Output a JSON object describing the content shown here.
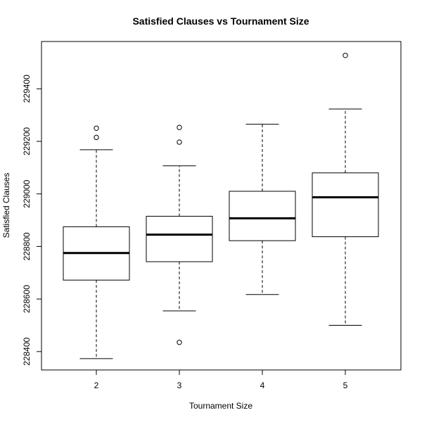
{
  "chart_data": {
    "type": "boxplot",
    "title": "Satisfied Clauses vs Tournament Size",
    "xlabel": "Tournament Size",
    "ylabel": "Satisfied Clauses",
    "categories": [
      "2",
      "3",
      "4",
      "5"
    ],
    "yticks": [
      228400,
      228600,
      228800,
      229000,
      229200,
      229400
    ],
    "ylim": [
      228330,
      229580
    ],
    "boxes": [
      {
        "category": "2",
        "whisker_low": 228373,
        "q1": 228672,
        "median": 228775,
        "q3": 228875,
        "whisker_high": 229168,
        "outliers": [
          229215,
          229250
        ]
      },
      {
        "category": "3",
        "whisker_low": 228555,
        "q1": 228742,
        "median": 228845,
        "q3": 228915,
        "whisker_high": 229107,
        "outliers": [
          228435,
          229197,
          229253
        ]
      },
      {
        "category": "4",
        "whisker_low": 228617,
        "q1": 228822,
        "median": 228907,
        "q3": 229010,
        "whisker_high": 229265,
        "outliers": []
      },
      {
        "category": "5",
        "whisker_low": 228500,
        "q1": 228837,
        "median": 228987,
        "q3": 229080,
        "whisker_high": 229323,
        "outliers": [
          229527
        ]
      }
    ],
    "grid": false,
    "legend": "none"
  }
}
